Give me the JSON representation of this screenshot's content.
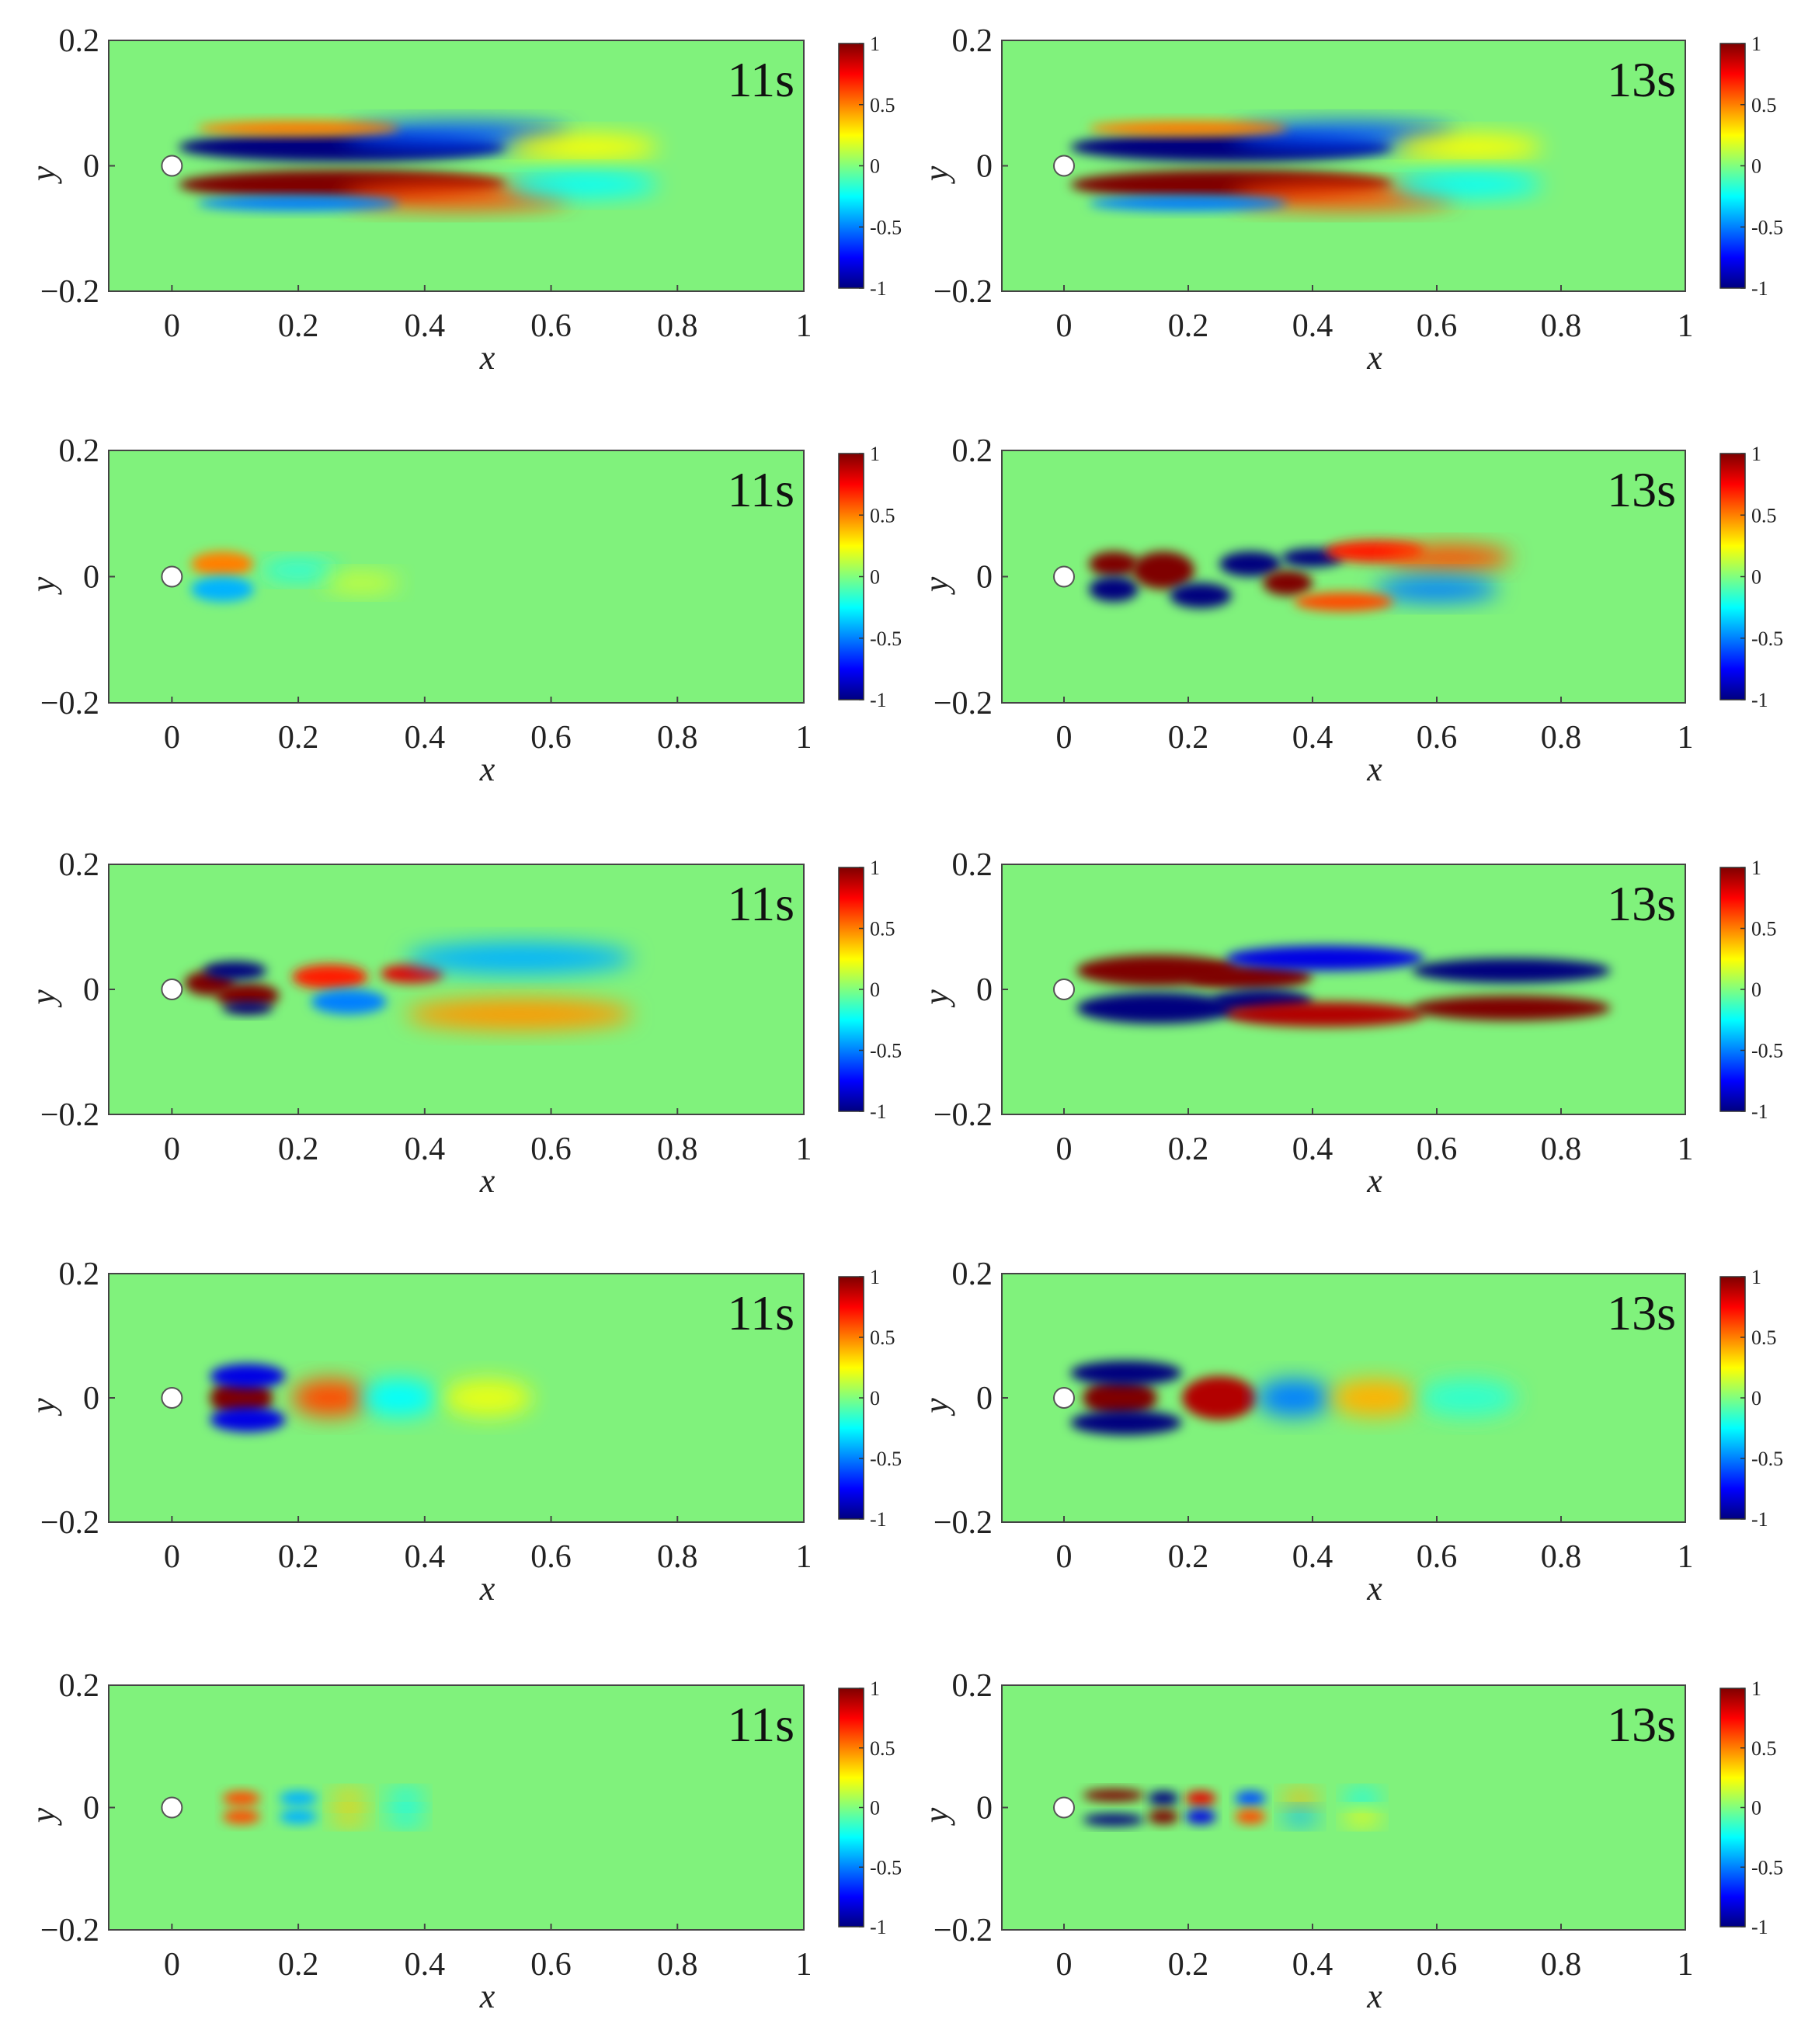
{
  "figure": {
    "panels": [
      {
        "row": 0,
        "col": 0,
        "time_label": "11s",
        "pattern": "shear"
      },
      {
        "row": 0,
        "col": 1,
        "time_label": "13s",
        "pattern": "shear"
      },
      {
        "row": 1,
        "col": 0,
        "time_label": "11s",
        "pattern": "weak"
      },
      {
        "row": 1,
        "col": 1,
        "time_label": "13s",
        "pattern": "turbulent"
      },
      {
        "row": 2,
        "col": 0,
        "time_label": "11s",
        "pattern": "mixed"
      },
      {
        "row": 2,
        "col": 1,
        "time_label": "13s",
        "pattern": "mixed_strong"
      },
      {
        "row": 3,
        "col": 0,
        "time_label": "11s",
        "pattern": "symmetric"
      },
      {
        "row": 3,
        "col": 1,
        "time_label": "13s",
        "pattern": "symmetric_strong"
      },
      {
        "row": 4,
        "col": 0,
        "time_label": "11s",
        "pattern": "antisymmetric"
      },
      {
        "row": 4,
        "col": 1,
        "time_label": "13s",
        "pattern": "antisymmetric_strong"
      }
    ]
  },
  "chart_data": {
    "type": "heatmap",
    "xlabel": "x",
    "ylabel": "y",
    "xlim": [
      -0.1,
      1.0
    ],
    "ylim": [
      -0.2,
      0.2
    ],
    "x_ticks": [
      0,
      0.2,
      0.4,
      0.6,
      0.8,
      1
    ],
    "x_tick_labels": [
      "0",
      "0.2",
      "0.4",
      "0.6",
      "0.8",
      "1"
    ],
    "y_ticks": [
      -0.2,
      0,
      0.2
    ],
    "y_tick_labels": [
      "−0.2",
      "0",
      "0.2"
    ],
    "colorbar": {
      "range": [
        -1,
        1
      ],
      "ticks": [
        1,
        0.5,
        0,
        -0.5,
        -1
      ],
      "tick_labels": [
        "1",
        "0.5",
        "0",
        "-0.5",
        "-1"
      ],
      "colormap": "jet"
    },
    "cylinder_center": [
      0.0,
      0.0
    ],
    "background_color": "#80f27c"
  }
}
